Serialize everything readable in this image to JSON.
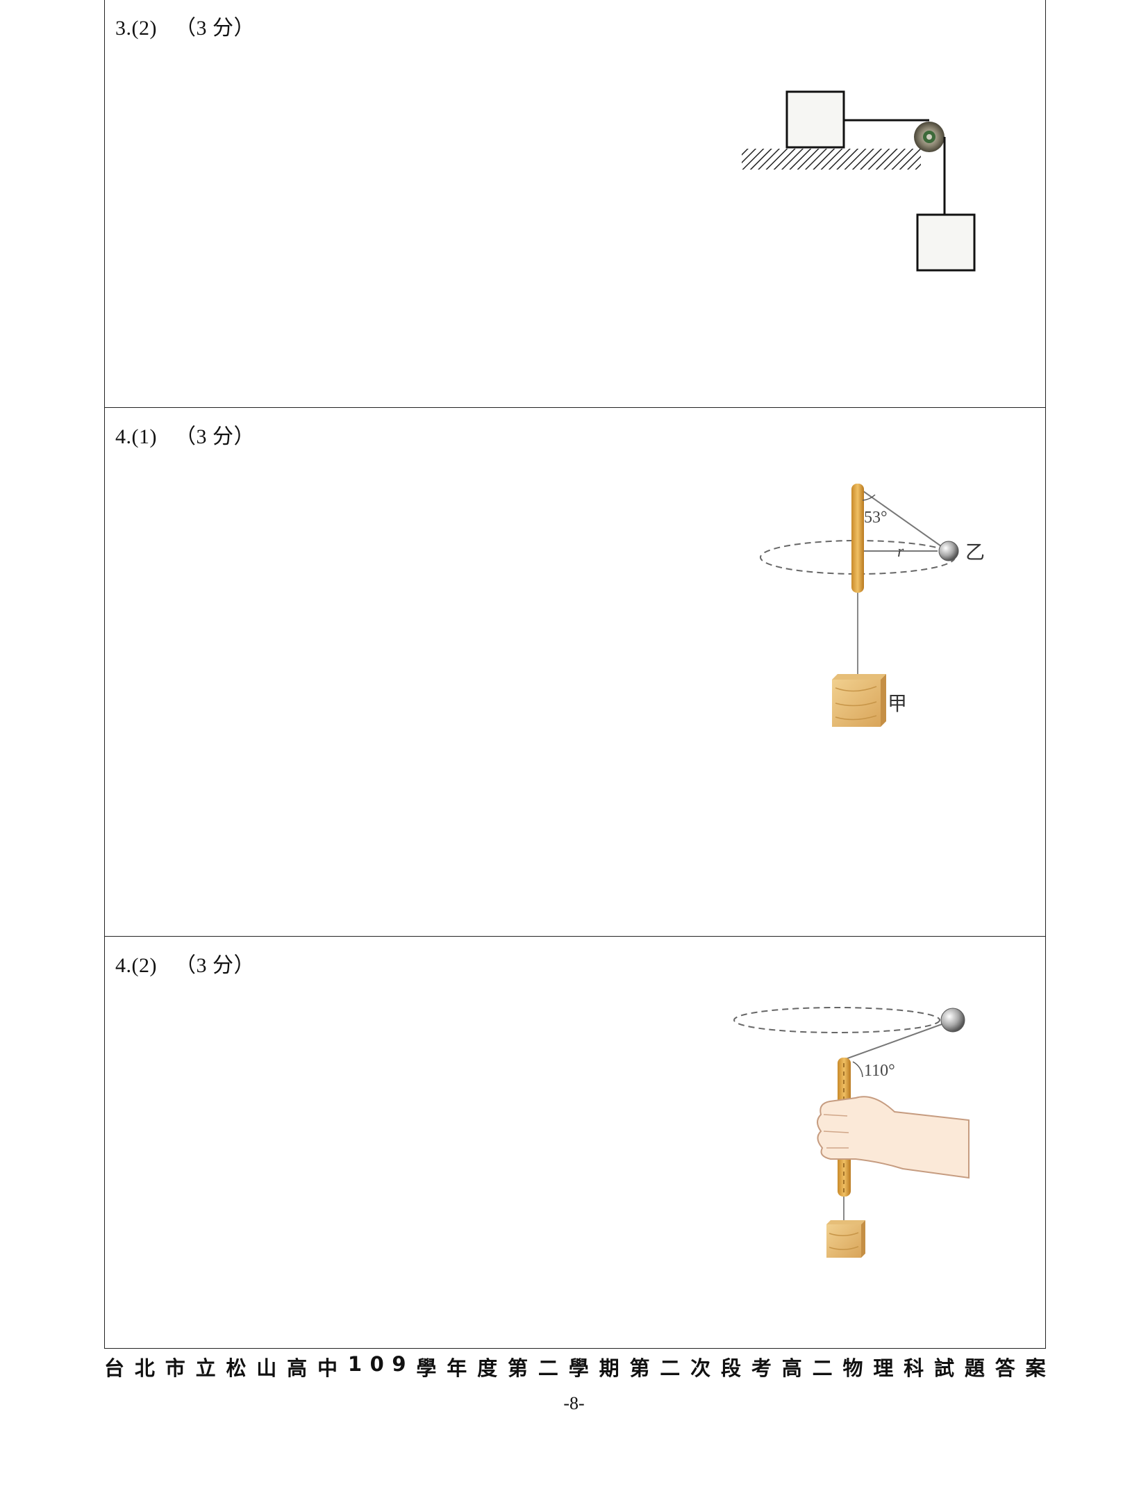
{
  "sections": [
    {
      "label": "3.(2)",
      "points": "（3 分）"
    },
    {
      "label": "4.(1)",
      "points": "（3 分）",
      "figure": {
        "angle": "53°",
        "radius": "r",
        "ball": "乙",
        "block": "甲"
      }
    },
    {
      "label": "4.(2)",
      "points": "（3 分）",
      "figure": {
        "angle": "110°"
      }
    }
  ],
  "footer": {
    "title": "台北市立松山高中 109 學年度第二學期第二次段考高二物理科試題答案",
    "page": "-8-"
  }
}
